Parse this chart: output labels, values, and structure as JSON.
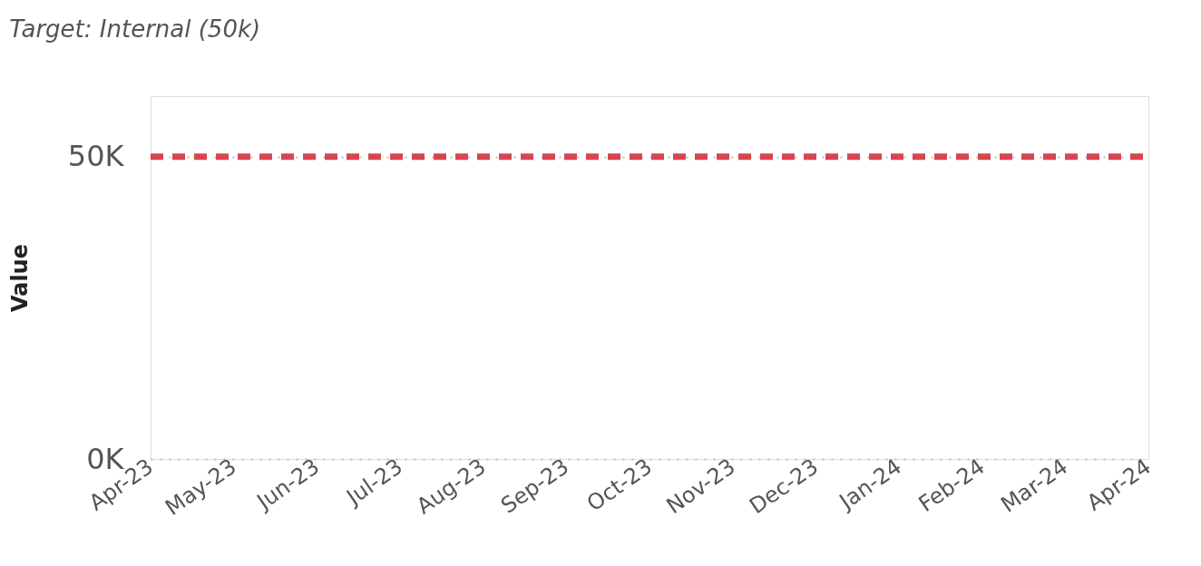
{
  "chart_data": {
    "type": "line",
    "title": "Target: Internal (50k)",
    "ylabel": "Value",
    "categories": [
      "Apr-23",
      "May-23",
      "Jun-23",
      "Jul-23",
      "Aug-23",
      "Sep-23",
      "Oct-23",
      "Nov-23",
      "Dec-23",
      "Jan-24",
      "Feb-24",
      "Mar-24",
      "Apr-24"
    ],
    "series": [
      {
        "color": "#d64550",
        "values": [
          50000,
          50000,
          50000,
          50000,
          50000,
          50000,
          50000,
          50000,
          50000,
          50000,
          50000,
          50000,
          50000
        ]
      }
    ],
    "ylim": [
      0,
      60000
    ],
    "yticks": [
      {
        "value": 0,
        "label": "0K"
      },
      {
        "value": 50000,
        "label": "50K"
      }
    ],
    "grid": "y",
    "line_style": "dashed",
    "marker": "none",
    "legend": false
  }
}
